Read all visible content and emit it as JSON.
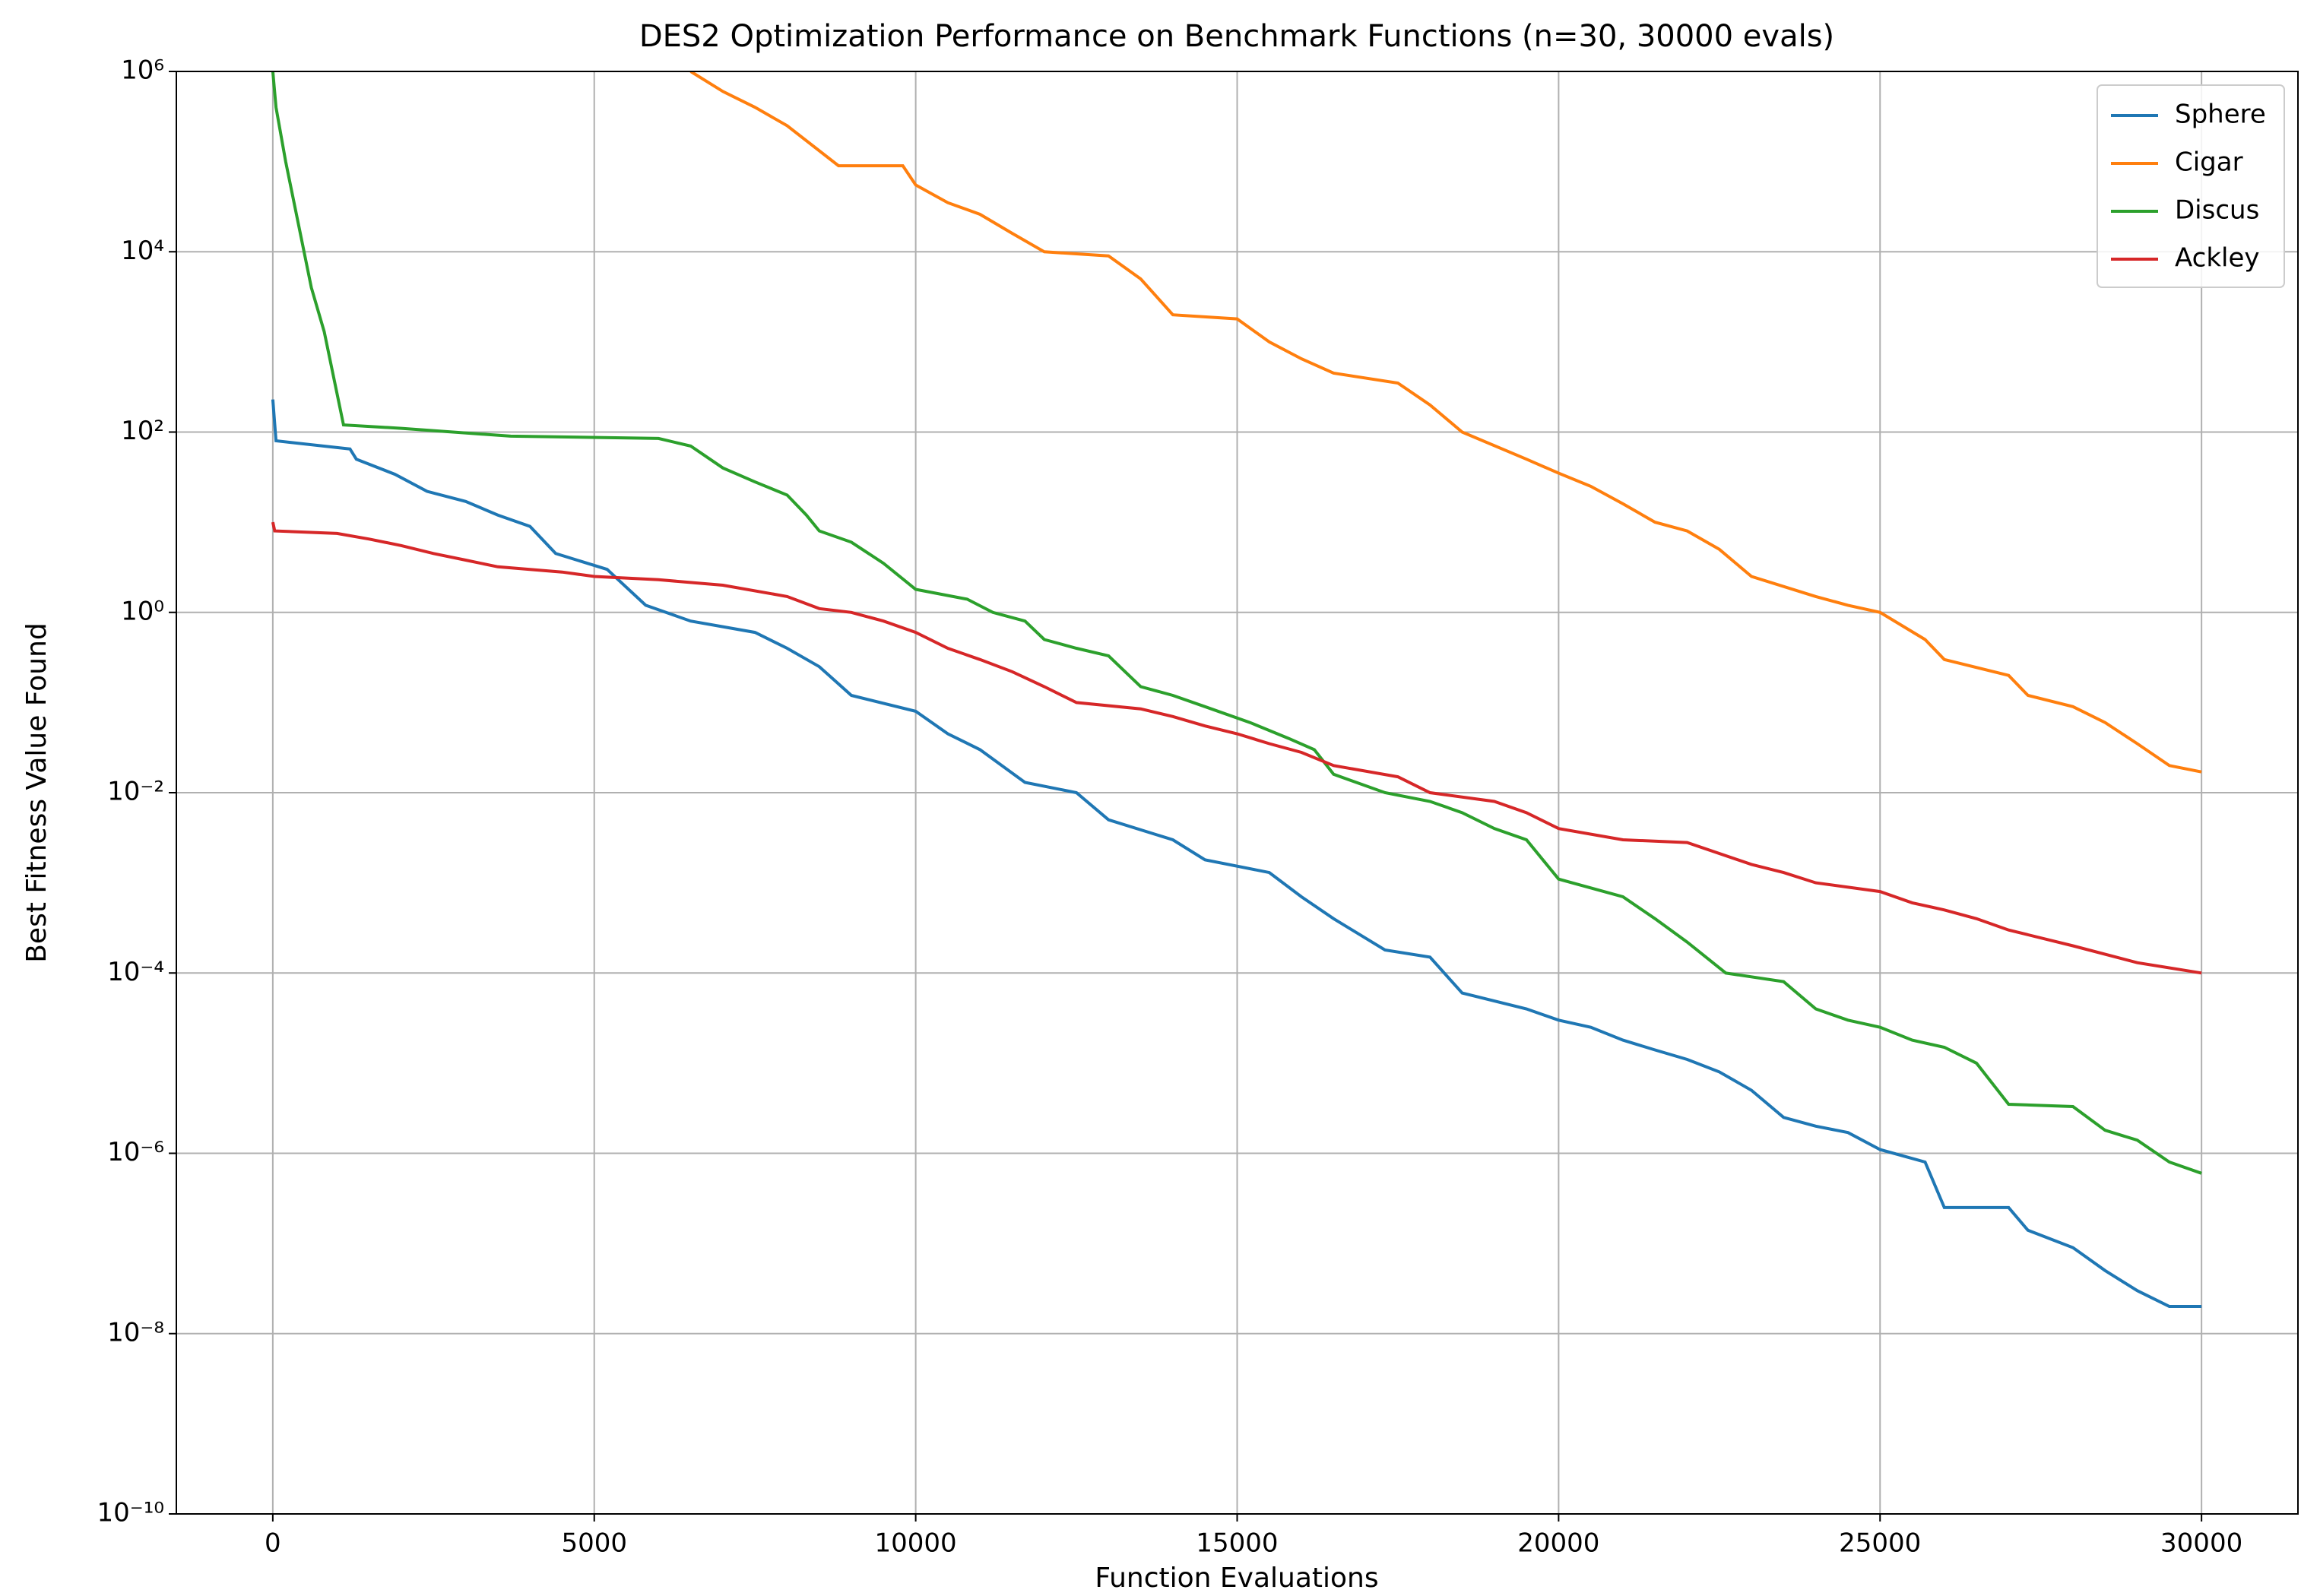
{
  "chart_data": {
    "type": "line",
    "title": "DES2 Optimization Performance on Benchmark Functions (n=30, 30000 evals)",
    "xlabel": "Function Evaluations",
    "ylabel": "Best Fitness Value Found",
    "yscale": "log",
    "grid": true,
    "legend": "upper right",
    "xlim": [
      -1500,
      31500
    ],
    "xticks": [
      0,
      5000,
      10000,
      15000,
      20000,
      25000,
      30000
    ],
    "ylim": [
      1e-10,
      1000000.0
    ],
    "yticks": [
      {
        "value": 1e-10,
        "label": "10⁻¹⁰"
      },
      {
        "value": 1e-08,
        "label": "10⁻⁸"
      },
      {
        "value": 1e-06,
        "label": "10⁻⁶"
      },
      {
        "value": 0.0001,
        "label": "10⁻⁴"
      },
      {
        "value": 0.01,
        "label": "10⁻²"
      },
      {
        "value": 1,
        "label": "10⁰"
      },
      {
        "value": 100,
        "label": "10²"
      },
      {
        "value": 10000,
        "label": "10⁴"
      },
      {
        "value": 1000000,
        "label": "10⁶"
      }
    ],
    "series": [
      {
        "name": "Sphere",
        "color": "#1f77b4",
        "x": [
          0,
          50,
          1200,
          1300,
          1900,
          2400,
          3000,
          3500,
          4000,
          4400,
          5200,
          5800,
          6500,
          7500,
          8000,
          8500,
          9000,
          10000,
          10500,
          11000,
          11700,
          12500,
          13000,
          14000,
          14500,
          15500,
          16000,
          16500,
          17300,
          18000,
          18500,
          19500,
          20000,
          20500,
          21000,
          21500,
          22000,
          22500,
          23000,
          23500,
          24000,
          24500,
          25000,
          25700,
          26000,
          27000,
          27300,
          28000,
          28500,
          29000,
          29500,
          30000
        ],
        "values": [
          230,
          80,
          65,
          50,
          34,
          22,
          17,
          12,
          9,
          4.5,
          3,
          1.2,
          0.8,
          0.6,
          0.4,
          0.25,
          0.12,
          0.08,
          0.045,
          0.03,
          0.013,
          0.01,
          0.005,
          0.003,
          0.0018,
          0.0013,
          0.0007,
          0.0004,
          0.00018,
          0.00015,
          6e-05,
          4e-05,
          3e-05,
          2.5e-05,
          1.8e-05,
          1.4e-05,
          1.1e-05,
          8e-06,
          5e-06,
          2.5e-06,
          2e-06,
          1.7e-06,
          1.1e-06,
          8e-07,
          2.5e-07,
          2.5e-07,
          1.4e-07,
          9e-08,
          5e-08,
          3e-08,
          2e-08,
          2e-08
        ]
      },
      {
        "name": "Cigar",
        "color": "#ff7f0e",
        "x": [
          6500,
          7000,
          7500,
          8000,
          8800,
          9800,
          10000,
          10500,
          11000,
          11500,
          12000,
          13000,
          13500,
          14000,
          15000,
          15500,
          16000,
          16500,
          17500,
          18000,
          18500,
          19500,
          20000,
          20500,
          21000,
          21500,
          22000,
          22500,
          23000,
          24000,
          24500,
          25000,
          25700,
          26000,
          27000,
          27300,
          28000,
          28500,
          29000,
          29500,
          30000
        ],
        "values": [
          1000000,
          600000,
          400000,
          250000,
          90000,
          90000,
          55000,
          35000,
          26000,
          16000,
          10000,
          9000,
          5000,
          2000,
          1800,
          1000,
          650,
          450,
          350,
          200,
          100,
          50,
          35,
          25,
          16,
          10,
          8,
          5,
          2.5,
          1.5,
          1.2,
          1,
          0.5,
          0.3,
          0.2,
          0.12,
          0.09,
          0.06,
          0.035,
          0.02,
          0.017
        ]
      },
      {
        "name": "Discus",
        "color": "#2ca02c",
        "x": [
          0,
          50,
          200,
          400,
          600,
          800,
          1100,
          2000,
          3700,
          6000,
          6500,
          7000,
          7500,
          8000,
          8300,
          8500,
          9000,
          9500,
          10000,
          10800,
          11200,
          11700,
          12000,
          12500,
          13000,
          13500,
          14000,
          14500,
          15200,
          15800,
          16200,
          16500,
          17300,
          18000,
          18500,
          19000,
          19500,
          20000,
          21000,
          21500,
          22000,
          22600,
          23500,
          24000,
          24500,
          25000,
          25500,
          26000,
          26500,
          27000,
          28000,
          28500,
          29000,
          29500,
          30000
        ],
        "values": [
          1000000,
          400000,
          100000,
          20000,
          4000,
          1300,
          120,
          110,
          90,
          85,
          70,
          40,
          28,
          20,
          12,
          8,
          6,
          3.5,
          1.8,
          1.4,
          1,
          0.8,
          0.5,
          0.4,
          0.33,
          0.15,
          0.12,
          0.09,
          0.06,
          0.04,
          0.03,
          0.016,
          0.01,
          0.008,
          0.006,
          0.004,
          0.003,
          0.0011,
          0.0007,
          0.0004,
          0.00022,
          0.0001,
          8e-05,
          4e-05,
          3e-05,
          2.5e-05,
          1.8e-05,
          1.5e-05,
          1e-05,
          3.5e-06,
          3.3e-06,
          1.8e-06,
          1.4e-06,
          8e-07,
          6e-07
        ]
      },
      {
        "name": "Ackley",
        "color": "#d62728",
        "x": [
          0,
          30,
          1000,
          1500,
          2000,
          2500,
          3000,
          3500,
          4500,
          5000,
          6000,
          7000,
          8000,
          8500,
          9000,
          9500,
          10000,
          10500,
          11000,
          11500,
          12000,
          12500,
          13500,
          14000,
          14500,
          15000,
          15500,
          16000,
          16500,
          17500,
          18000,
          19000,
          19500,
          20000,
          21000,
          22000,
          23000,
          23500,
          24000,
          25000,
          25500,
          26000,
          26500,
          27000,
          28000,
          29000,
          30000
        ],
        "values": [
          10,
          8,
          7.5,
          6.5,
          5.5,
          4.5,
          3.8,
          3.2,
          2.8,
          2.5,
          2.3,
          2,
          1.5,
          1.1,
          1,
          0.8,
          0.6,
          0.4,
          0.3,
          0.22,
          0.15,
          0.1,
          0.085,
          0.07,
          0.055,
          0.045,
          0.035,
          0.028,
          0.02,
          0.015,
          0.01,
          0.008,
          0.006,
          0.004,
          0.003,
          0.0028,
          0.0016,
          0.0013,
          0.001,
          0.0008,
          0.0006,
          0.0005,
          0.0004,
          0.0003,
          0.0002,
          0.00013,
          0.0001
        ]
      }
    ]
  }
}
